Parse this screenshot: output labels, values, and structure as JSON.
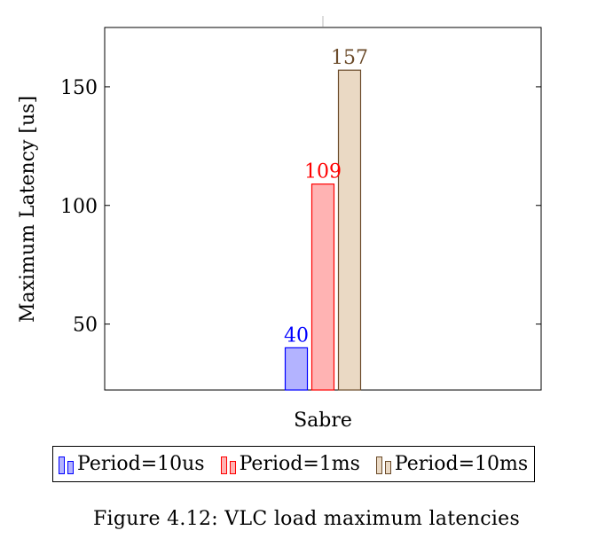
{
  "chart_data": {
    "type": "bar",
    "categories": [
      "Sabre"
    ],
    "series": [
      {
        "name": "Period=10us",
        "values": [
          40
        ],
        "fill": "#b3b3ff",
        "stroke": "#0000ff",
        "label_color": "#0000ff"
      },
      {
        "name": "Period=1ms",
        "values": [
          109
        ],
        "fill": "#ffb3b3",
        "stroke": "#ff0000",
        "label_color": "#ff0000"
      },
      {
        "name": "Period=10ms",
        "values": [
          157
        ],
        "fill": "#ead9c4",
        "stroke": "#6b4b2a",
        "label_color": "#6b4b2a"
      }
    ],
    "data_labels": [
      "40",
      "109",
      "157"
    ],
    "title": "",
    "xlabel": "",
    "ylabel": "Maximum Latency [us]",
    "ylim": [
      22.2,
      175
    ],
    "yticks": [
      50,
      100,
      150
    ],
    "ytick_labels": [
      "50",
      "100",
      "150"
    ],
    "legend_position": "below",
    "grid": false
  },
  "caption": "Figure 4.12: VLC load maximum latencies"
}
